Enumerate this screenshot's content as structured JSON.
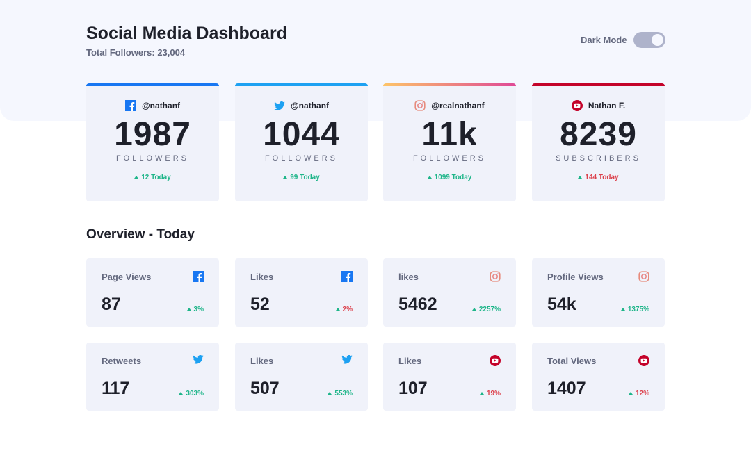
{
  "header": {
    "title": "Social Media Dashboard",
    "total_followers": "Total Followers: 23,004",
    "dark_mode_label": "Dark Mode",
    "dark_mode_on": false
  },
  "colors": {
    "facebook": "#1877f2",
    "twitter": "#1da1f2",
    "instagram_start": "#fdc468",
    "instagram_end": "#df4996",
    "youtube": "#c4032a",
    "up": "#1eb589",
    "down": "#dc414c"
  },
  "followers": [
    {
      "platform": "facebook",
      "icon": "facebook-icon",
      "handle": "@nathanf",
      "count": "1987",
      "unit": "FOLLOWERS",
      "today": "12 Today",
      "trend": "up"
    },
    {
      "platform": "twitter",
      "icon": "twitter-icon",
      "handle": "@nathanf",
      "count": "1044",
      "unit": "FOLLOWERS",
      "today": "99 Today",
      "trend": "up"
    },
    {
      "platform": "instagram",
      "icon": "instagram-icon",
      "handle": "@realnathanf",
      "count": "11k",
      "unit": "FOLLOWERS",
      "today": "1099 Today",
      "trend": "up"
    },
    {
      "platform": "youtube",
      "icon": "youtube-icon",
      "handle": "Nathan F.",
      "count": "8239",
      "unit": "SUBSCRIBERS",
      "today": "144 Today",
      "trend": "down"
    }
  ],
  "overview": {
    "title": "Overview - Today",
    "items": [
      {
        "label": "Page Views",
        "platform": "facebook",
        "value": "87",
        "change": "3%",
        "trend": "up"
      },
      {
        "label": "Likes",
        "platform": "facebook",
        "value": "52",
        "change": "2%",
        "trend": "down"
      },
      {
        "label": "likes",
        "platform": "instagram",
        "value": "5462",
        "change": "2257%",
        "trend": "up"
      },
      {
        "label": "Profile Views",
        "platform": "instagram",
        "value": "54k",
        "change": "1375%",
        "trend": "up"
      },
      {
        "label": "Retweets",
        "platform": "twitter",
        "value": "117",
        "change": "303%",
        "trend": "up"
      },
      {
        "label": "Likes",
        "platform": "twitter",
        "value": "507",
        "change": "553%",
        "trend": "up"
      },
      {
        "label": "Likes",
        "platform": "youtube",
        "value": "107",
        "change": "19%",
        "trend": "down"
      },
      {
        "label": "Total Views",
        "platform": "youtube",
        "value": "1407",
        "change": "12%",
        "trend": "down"
      }
    ]
  }
}
